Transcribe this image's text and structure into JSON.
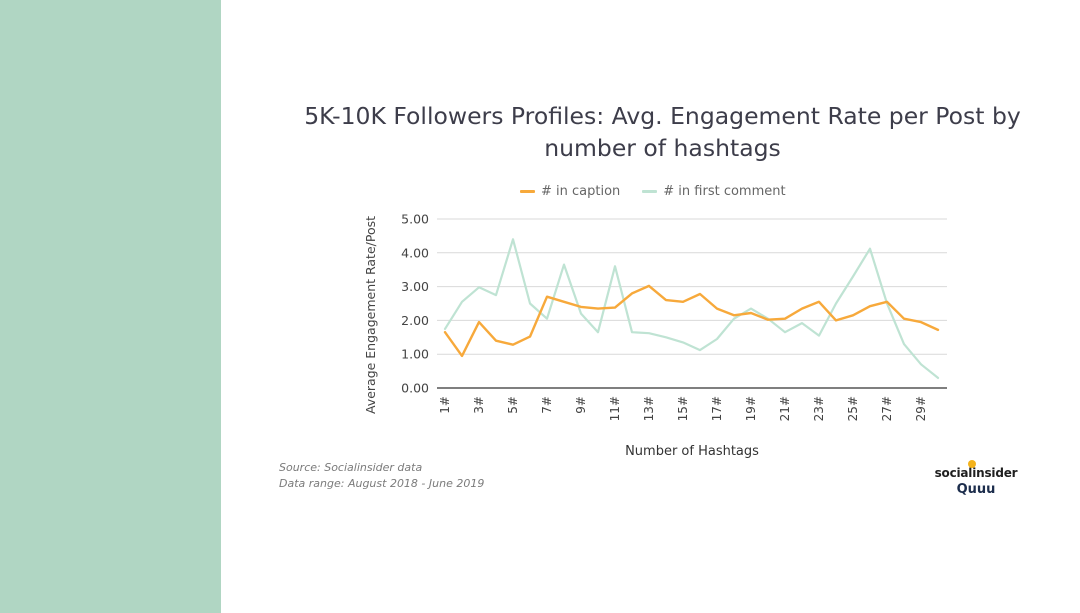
{
  "chart_data": {
    "type": "line",
    "title": "5K-10K Followers Profiles: Avg. Engagement Rate per Post by number of hashtags",
    "xlabel": "Number of Hashtags",
    "ylabel": "Average Engagement Rate/Post",
    "ylim": [
      0,
      5
    ],
    "yticks": [
      "0.00",
      "1.00",
      "2.00",
      "3.00",
      "4.00",
      "5.00"
    ],
    "x": [
      1,
      2,
      3,
      4,
      5,
      6,
      7,
      8,
      9,
      10,
      11,
      12,
      13,
      14,
      15,
      16,
      17,
      18,
      19,
      20,
      21,
      22,
      23,
      24,
      25,
      26,
      27,
      28,
      29,
      30
    ],
    "x_tick_labels": [
      "1#",
      "3#",
      "5#",
      "7#",
      "9#",
      "11#",
      "13#",
      "15#",
      "17#",
      "19#",
      "21#",
      "23#",
      "25#",
      "27#",
      "29#"
    ],
    "x_tick_values": [
      1,
      3,
      5,
      7,
      9,
      11,
      13,
      15,
      17,
      19,
      21,
      23,
      25,
      27,
      29
    ],
    "grid": true,
    "legend_position": "top",
    "series": [
      {
        "name": "# in caption",
        "color": "#f7a93b",
        "values": [
          1.65,
          0.95,
          1.95,
          1.4,
          1.28,
          1.52,
          2.7,
          2.55,
          2.4,
          2.35,
          2.38,
          2.8,
          3.02,
          2.6,
          2.55,
          2.78,
          2.35,
          2.15,
          2.22,
          2.02,
          2.05,
          2.35,
          2.55,
          2.0,
          2.15,
          2.42,
          2.55,
          2.05,
          1.95,
          1.72
        ]
      },
      {
        "name": "# in first comment",
        "color": "#bfe3d3",
        "values": [
          1.75,
          2.55,
          2.98,
          2.75,
          4.4,
          2.5,
          2.05,
          3.65,
          2.2,
          1.65,
          3.6,
          1.65,
          1.62,
          1.5,
          1.35,
          1.12,
          1.45,
          2.05,
          2.35,
          2.05,
          1.65,
          1.92,
          1.55,
          2.5,
          3.3,
          4.12,
          2.5,
          1.3,
          0.7,
          0.3
        ]
      }
    ]
  },
  "footer": {
    "source": "Source: Socialinsider data",
    "range": "Data range: August 2018 - June 2019"
  },
  "brand": {
    "name_top": "socialinsider",
    "name_bottom": "Quuu"
  }
}
